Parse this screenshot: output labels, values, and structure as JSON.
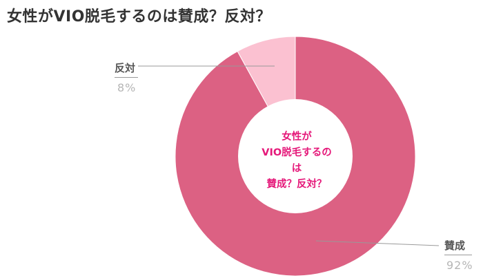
{
  "title": "女性がVIO脱毛するのは賛成？反対？",
  "center_label_lines": [
    "女性が",
    "VIO脱毛するの",
    "は",
    "賛成？反対？"
  ],
  "chart_data": {
    "type": "pie",
    "title": "女性がVIO脱毛するのは賛成？反対？",
    "donut": true,
    "slices": [
      {
        "label": "賛成",
        "value": 92,
        "value_text": "92%",
        "color": "#dc6183"
      },
      {
        "label": "反対",
        "value": 8,
        "value_text": "8%",
        "color": "#fbc1d1"
      }
    ],
    "start": "12 o'clock",
    "direction": "clockwise"
  }
}
